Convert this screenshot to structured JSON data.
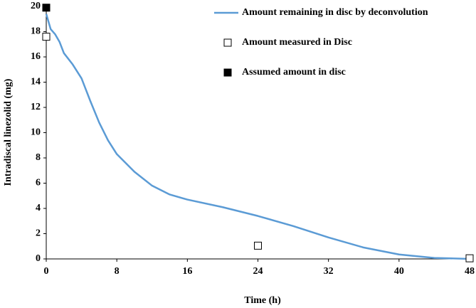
{
  "chart_data": {
    "type": "line",
    "x_label": "Time (h)",
    "y_label": "Intradiscal linezolid (mg)",
    "xlim": [
      0,
      48
    ],
    "xticks": [
      0,
      8,
      16,
      24,
      32,
      40,
      48
    ],
    "ylim": [
      0,
      20
    ],
    "yticks": [
      0,
      2,
      4,
      6,
      8,
      10,
      12,
      14,
      16,
      18,
      20
    ],
    "grid": false,
    "legend": "upper right",
    "series": [
      {
        "name": "Amount remaining in disc by deconvolution",
        "type": "line",
        "color": "#5b9bd5",
        "x": [
          0,
          0.5,
          1,
          1.5,
          2,
          3,
          4,
          5,
          6,
          7,
          8,
          10,
          12,
          14,
          16,
          20,
          24,
          28,
          32,
          36,
          40,
          44,
          48
        ],
        "values": [
          19.4,
          18.2,
          17.8,
          17.2,
          16.3,
          15.4,
          14.3,
          12.5,
          10.8,
          9.4,
          8.3,
          6.9,
          5.8,
          5.1,
          4.7,
          4.1,
          3.4,
          2.6,
          1.7,
          0.9,
          0.35,
          0.08,
          0.0
        ]
      },
      {
        "name": "Amount measured in Disc",
        "type": "scatter",
        "marker": "open-square",
        "color": "#000000",
        "x": [
          0,
          24,
          48
        ],
        "values": [
          17.6,
          1.05,
          0.05
        ]
      },
      {
        "name": "Assumed amount in disc",
        "type": "scatter",
        "marker": "filled-square",
        "color": "#000000",
        "x": [
          0
        ],
        "values": [
          19.9
        ]
      }
    ]
  }
}
